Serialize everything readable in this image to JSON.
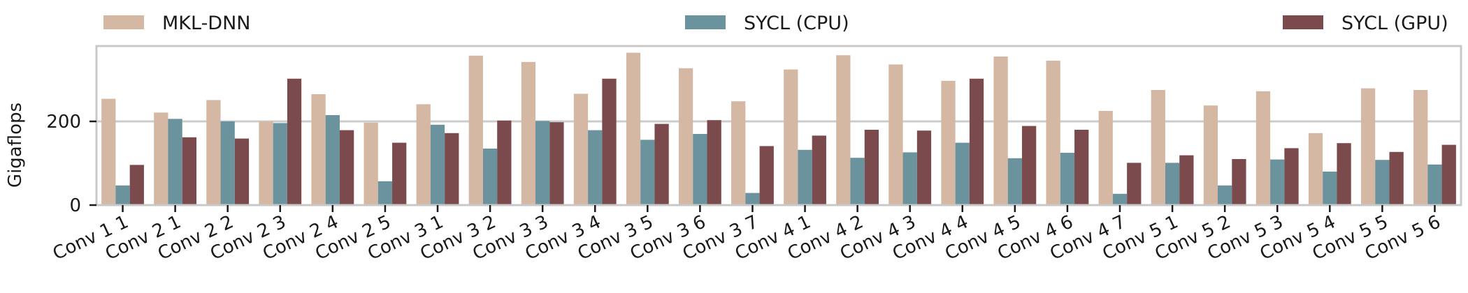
{
  "chart_data": {
    "type": "bar",
    "title": "",
    "xlabel": "",
    "ylabel": "Gigaflops",
    "ylim": [
      0,
      380
    ],
    "yticks": [
      0,
      200
    ],
    "grid": "y",
    "legend_position": "top",
    "categories": [
      "Conv 1 1",
      "Conv 2 1",
      "Conv 2 2",
      "Conv 2 3",
      "Conv 2 4",
      "Conv 2 5",
      "Conv 3 1",
      "Conv 3 2",
      "Conv 3 3",
      "Conv 3 4",
      "Conv 3 5",
      "Conv 3 6",
      "Conv 3 7",
      "Conv 4 1",
      "Conv 4 2",
      "Conv 4 3",
      "Conv 4 4",
      "Conv 4 5",
      "Conv 4 6",
      "Conv 4 7",
      "Conv 5 1",
      "Conv 5 2",
      "Conv 5 3",
      "Conv 5 4",
      "Conv 5 5",
      "Conv 5 6"
    ],
    "series": [
      {
        "name": "MKL-DNN",
        "color": "#d4b8a4",
        "values": [
          254,
          221,
          251,
          200,
          265,
          197,
          241,
          357,
          342,
          266,
          364,
          327,
          248,
          324,
          358,
          336,
          297,
          355,
          345,
          225,
          275,
          238,
          272,
          172,
          279,
          275
        ]
      },
      {
        "name": "SYCL (CPU)",
        "color": "#6b939e",
        "values": [
          47,
          206,
          200,
          196,
          215,
          57,
          192,
          135,
          201,
          179,
          156,
          170,
          29,
          132,
          113,
          126,
          149,
          112,
          125,
          27,
          101,
          47,
          109,
          80,
          108,
          97
        ]
      },
      {
        "name": "SYCL (GPU)",
        "color": "#7a4a4c",
        "values": [
          96,
          162,
          159,
          302,
          179,
          149,
          172,
          202,
          198,
          302,
          194,
          203,
          141,
          166,
          180,
          178,
          302,
          189,
          180,
          101,
          119,
          110,
          136,
          148,
          127,
          144
        ]
      }
    ]
  }
}
